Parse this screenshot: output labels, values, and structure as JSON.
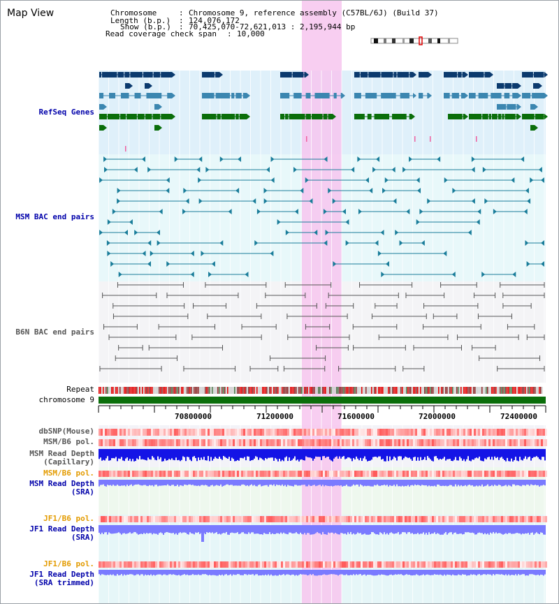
{
  "view_title": "Map View",
  "header": {
    "chromosome_label": "Chromosome",
    "chromosome_value": "Chromosome 9, reference assembly (C57BL/6J) (Build 37)",
    "length_label": "Length (b.p.)",
    "length_value": "124,076,172",
    "show_label": "Show (b.p.)",
    "show_value": "70,425,070-72,621,013 : 2,195,944 bp",
    "span_label": "Read coverage check span",
    "span_value": "10,000"
  },
  "tracks": {
    "refseq": "RefSeq Genes",
    "msm_bac": "MSM BAC end pairs",
    "b6n_bac": "B6N BAC end pairs",
    "repeat": "Repeat",
    "chromosome": "chromosome 9",
    "dbsnp": "dbSNP(Mouse)",
    "msm_pol": "MSM/B6 pol.",
    "msm_depth_cap_1": "MSM Read Depth",
    "msm_depth_cap_2": "(Capillary)",
    "msm_pol_sra": "MSM/B6 pol.",
    "msm_depth_sra_1": "MSM Read Depth",
    "msm_depth_sra_2": "(SRA)",
    "jf1_pol": "JF1/B6 pol.",
    "jf1_depth_1": "JF1 Read Depth",
    "jf1_depth_2": "(SRA)",
    "jf1_pol_trim": "JF1/B6 pol.",
    "jf1_depth_trim_1": "JF1 Read Depth",
    "jf1_depth_trim_2": "(SRA trimmed)"
  },
  "axis_ticks": [
    "70800000",
    "71200000",
    "71600000",
    "72000000",
    "72400000"
  ],
  "colors": {
    "refseq_dark": "#0b3a6e",
    "refseq_mid": "#3b86b0",
    "refseq_green": "#0a6e0a",
    "msm_bac": "#1a7d9a",
    "b6n_bac": "#555555",
    "highlight": "#f7c6ee",
    "depth_blue": "#1414e6",
    "depth_light": "#7a7aff",
    "label_blue": "#0000aa",
    "label_orange": "#e39b00"
  }
}
